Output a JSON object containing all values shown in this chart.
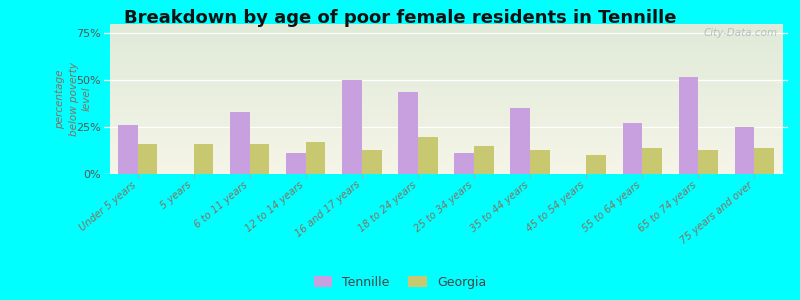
{
  "title": "Breakdown by age of poor female residents in Tennille",
  "categories": [
    "Under 5 years",
    "5 years",
    "6 to 11 years",
    "12 to 14 years",
    "16 and 17 years",
    "18 to 24 years",
    "25 to 34 years",
    "35 to 44 years",
    "45 to 54 years",
    "55 to 64 years",
    "65 to 74 years",
    "75 years and over"
  ],
  "tennille_values": [
    26,
    0,
    33,
    11,
    50,
    44,
    11,
    35,
    0,
    27,
    52,
    25
  ],
  "georgia_values": [
    16,
    16,
    16,
    17,
    13,
    20,
    15,
    13,
    10,
    14,
    13,
    14
  ],
  "tennille_color": "#c8a0e0",
  "georgia_color": "#c8c870",
  "ylabel": "percentage\nbelow poverty\nlevel",
  "ylim": [
    0,
    80
  ],
  "yticks": [
    0,
    25,
    50,
    75
  ],
  "ytick_labels": [
    "0%",
    "25%",
    "50%",
    "75%"
  ],
  "background_top": "#e0ead8",
  "background_bottom": "#f5f5e8",
  "outer_bg": "#00ffff",
  "title_fontsize": 13,
  "legend_tennille": "Tennille",
  "legend_georgia": "Georgia",
  "watermark": "City-Data.com",
  "tick_color": "#887060",
  "ylabel_color": "#887060"
}
